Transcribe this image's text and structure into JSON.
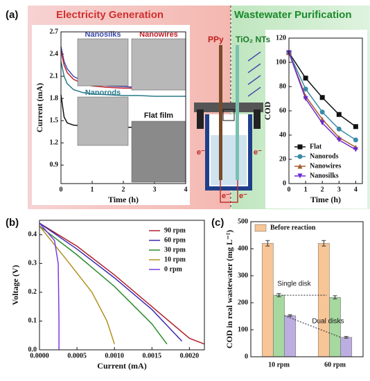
{
  "panels": [
    "(a)",
    "(b)",
    "(c)"
  ],
  "banners": [
    "Electricity Generation",
    "Wastewater Purification"
  ],
  "diagram": {
    "left_electrode": "PPy",
    "right_electrode": "TiO₂ NTs",
    "electron": "e⁻"
  },
  "chart_data": [
    {
      "type": "line",
      "xlabel": "Time (h)",
      "ylabel": "Current (mA)",
      "x": [
        0,
        0.1,
        0.2,
        0.4,
        0.7,
        1,
        1.5,
        2,
        2.5,
        3,
        3.5,
        4
      ],
      "xlim": [
        0,
        4
      ],
      "xticks": [
        0,
        1,
        2,
        3,
        4
      ],
      "ylim": [
        0.65,
        2.7
      ],
      "yticks": [
        0.9,
        1.2,
        1.5,
        1.8,
        2.1,
        2.4,
        2.7
      ],
      "series": [
        {
          "name": "Nanosilks",
          "color": "#3a4aa8",
          "values": [
            2.5,
            2.3,
            2.2,
            2.1,
            2.03,
            2.0,
            1.97,
            1.96,
            1.95,
            1.95,
            1.94,
            1.94
          ]
        },
        {
          "name": "Nanowires",
          "color": "#c0202a",
          "values": [
            2.45,
            2.25,
            2.15,
            2.06,
            2.0,
            1.97,
            1.95,
            1.94,
            1.94,
            1.93,
            1.93,
            1.93
          ]
        },
        {
          "name": "Nanorods",
          "color": "#2a7a8a",
          "values": [
            2.3,
            2.1,
            2.0,
            1.92,
            1.88,
            1.86,
            1.85,
            1.84,
            1.84,
            1.83,
            1.83,
            1.83
          ]
        },
        {
          "name": "Flat film",
          "color": "#111111",
          "values": [
            1.85,
            1.55,
            1.47,
            1.44,
            1.43,
            1.42,
            1.42,
            1.41,
            1.41,
            1.41,
            1.4,
            1.4
          ]
        }
      ]
    },
    {
      "type": "line",
      "xlabel": "Time (h)",
      "ylabel": "COD",
      "x": [
        0,
        1,
        2,
        3,
        4
      ],
      "xlim": [
        0,
        4.4
      ],
      "xticks": [
        0,
        1,
        2,
        3,
        4
      ],
      "ylim": [
        0,
        120
      ],
      "yticks": [
        0,
        20,
        40,
        60,
        80,
        100,
        120
      ],
      "legend": "lower left",
      "series": [
        {
          "name": "Flat",
          "color": "#111111",
          "marker": "square",
          "values": [
            108,
            87,
            71,
            57,
            47
          ]
        },
        {
          "name": "Nanorods",
          "color": "#3a8aa8",
          "marker": "circle",
          "values": [
            108,
            78,
            59,
            45,
            36
          ]
        },
        {
          "name": "Nanowires",
          "color": "#a85a30",
          "marker": "triangle",
          "values": [
            108,
            72,
            53,
            38,
            30
          ]
        },
        {
          "name": "Nanosilks",
          "color": "#6a2ad0",
          "marker": "triangle-down",
          "values": [
            108,
            70,
            50,
            36,
            28
          ]
        }
      ]
    },
    {
      "type": "line",
      "xlabel": "Current (mA)",
      "ylabel": "Voltage (V)",
      "xlim": [
        0,
        0.0022
      ],
      "xticks": [
        {
          "value": 0,
          "label": "0.0000"
        },
        {
          "value": 0.0005,
          "label": "0.0005"
        },
        {
          "value": 0.001,
          "label": "0.0010"
        },
        {
          "value": 0.0015,
          "label": "0.0015"
        },
        {
          "value": 0.002,
          "label": "0.0020"
        }
      ],
      "ylim": [
        0,
        0.45
      ],
      "yticks": [
        {
          "value": 0,
          "label": "0.0"
        },
        0.1,
        0.2,
        0.3,
        0.4
      ],
      "legend": "upper right",
      "series": [
        {
          "name": "90 rpm",
          "color": "#b0202a",
          "x": [
            0,
            0.0005,
            0.001,
            0.0015,
            0.002,
            0.0022
          ],
          "values": [
            0.44,
            0.36,
            0.26,
            0.15,
            0.04,
            0.02
          ]
        },
        {
          "name": "60 rpm",
          "color": "#3a2ab0",
          "x": [
            0,
            0.0005,
            0.001,
            0.0015,
            0.0019
          ],
          "values": [
            0.44,
            0.35,
            0.25,
            0.14,
            0.03
          ]
        },
        {
          "name": "30 rpm",
          "color": "#2a8a2a",
          "x": [
            0,
            0.0005,
            0.001,
            0.0015,
            0.0017
          ],
          "values": [
            0.43,
            0.33,
            0.22,
            0.09,
            0.02
          ]
        },
        {
          "name": "10 rpm",
          "color": "#b09020",
          "x": [
            0,
            0.0004,
            0.0007,
            0.0009,
            0.001
          ],
          "values": [
            0.43,
            0.3,
            0.2,
            0.1,
            0.02
          ]
        },
        {
          "name": "0 rpm",
          "color": "#7a3ae0",
          "x": [
            0,
            0.0002,
            0.00025,
            0.00026,
            0.00026
          ],
          "values": [
            0.44,
            0.38,
            0.3,
            0.1,
            0
          ]
        }
      ]
    },
    {
      "type": "bar",
      "ylabel": "COD in real wastewater (mg L⁻¹)",
      "categories": [
        "10 rpm",
        "60 rpm"
      ],
      "ylim": [
        0,
        500
      ],
      "yticks": [
        0,
        100,
        200,
        300,
        400,
        500
      ],
      "legend": "upper left",
      "series": [
        {
          "name": "Before reaction",
          "color": "#f7c596",
          "values": [
            420,
            420
          ],
          "errors": [
            10,
            10
          ]
        },
        {
          "name": "Single disk",
          "color": "#a6d8a0",
          "values": [
            228,
            220
          ],
          "errors": [
            6,
            6
          ]
        },
        {
          "name": "Dual disks",
          "color": "#bcaee0",
          "values": [
            152,
            72
          ],
          "errors": [
            3,
            3
          ]
        }
      ]
    }
  ]
}
